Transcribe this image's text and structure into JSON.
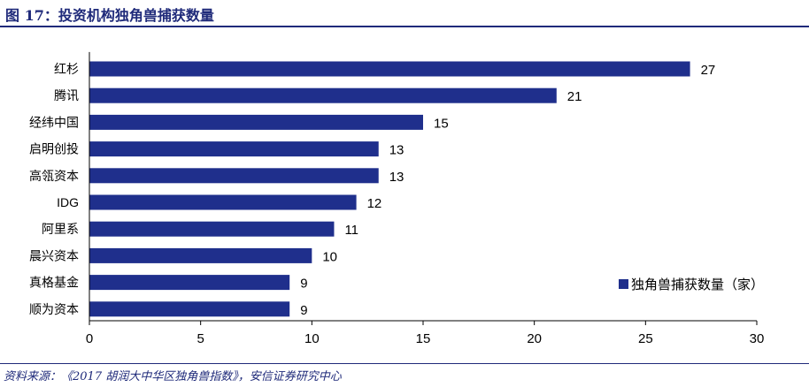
{
  "figure": {
    "title": "图 17：投资机构独角兽捕获数量",
    "source": "资料来源：《2017 胡润大中华区独角兽指数》，安信证券研究中心"
  },
  "colors": {
    "accent": "#1f2a7a",
    "bar": "#1f2f8c",
    "text": "#000000"
  },
  "chart_data": {
    "type": "bar",
    "orientation": "horizontal",
    "categories": [
      "红杉",
      "腾讯",
      "经纬中国",
      "启明创投",
      "高瓴资本",
      "IDG",
      "阿里系",
      "晨兴资本",
      "真格基金",
      "顺为资本"
    ],
    "series": [
      {
        "name": "独角兽捕获数量（家）",
        "values": [
          27,
          21,
          15,
          13,
          13,
          12,
          11,
          10,
          9,
          9
        ]
      }
    ],
    "xlim": [
      0,
      30
    ],
    "xticks": [
      0,
      5,
      10,
      15,
      20,
      25,
      30
    ],
    "grid": false,
    "legend": "bottom-right",
    "data_labels": true
  }
}
